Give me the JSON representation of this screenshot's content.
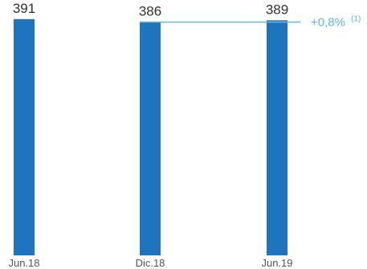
{
  "chart_data": {
    "type": "bar",
    "categories": [
      "Jun.18",
      "Dic.18",
      "Jun.19"
    ],
    "values": [
      391,
      386,
      389
    ],
    "data_labels": [
      "391",
      "386",
      "389"
    ],
    "title": "",
    "xlabel": "",
    "ylabel": "",
    "ylim": [
      0,
      400
    ],
    "grid": false,
    "bar_color": "#1f75bd",
    "annotation": {
      "text": "+0,8%",
      "superscript": "(1)",
      "color": "#5bb7f0",
      "from_category": "Dic.18",
      "to_category": "Jun.19",
      "level_value": 386
    }
  }
}
